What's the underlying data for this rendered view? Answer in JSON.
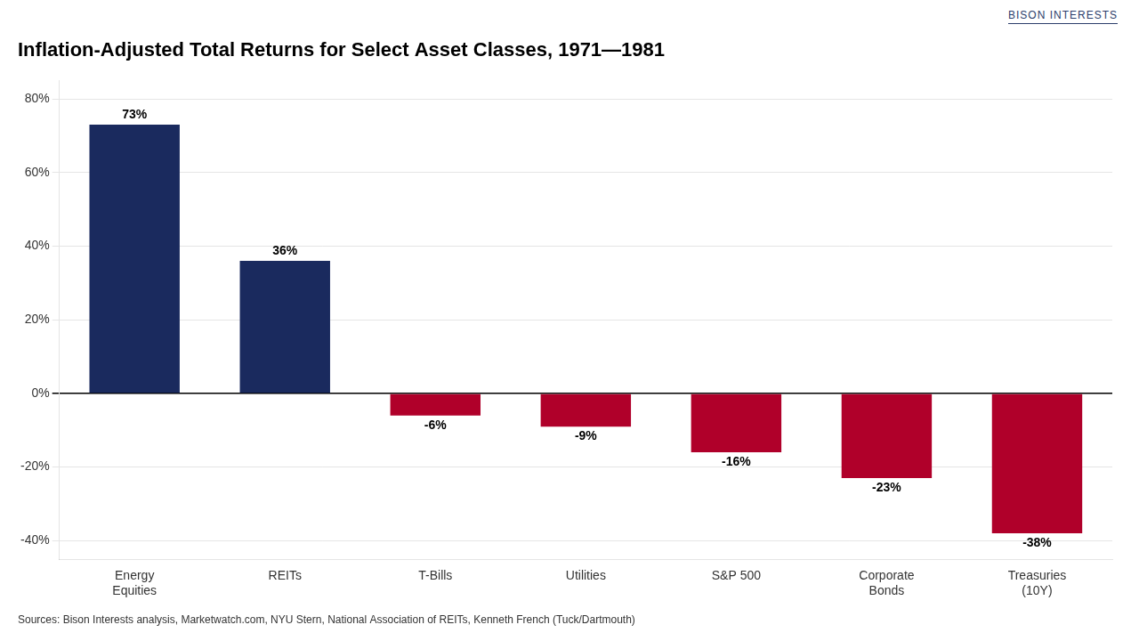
{
  "chart_data": {
    "type": "bar",
    "title": "Inflation-Adjusted Total Returns for Select Asset Classes, 1971—1981",
    "annotations": [
      "Sources: Bison Interests analysis, Marketwatch.com, NYU Stern, National Association of REITs, Kenneth French (Tuck/Dartmouth)",
      "BISON INTERESTS"
    ],
    "categories": [
      "Energy\nEquities",
      "REITs",
      "T-Bills",
      "Utilities",
      "S&P 500",
      "Corporate\nBonds",
      "Treasuries\n(10Y)"
    ],
    "values": [
      73,
      36,
      -6,
      -9,
      -16,
      -23,
      -38
    ],
    "value_labels": [
      "73%",
      "36%",
      "-6%",
      "-9%",
      "-16%",
      "-23%",
      "-38%"
    ],
    "colors": [
      "#1a2a5e",
      "#1a2a5e",
      "#b0002a",
      "#b0002a",
      "#b0002a",
      "#b0002a",
      "#b0002a"
    ],
    "ylim": [
      -45,
      85
    ],
    "yticks": [
      {
        "value": -40,
        "label": "-40%"
      },
      {
        "value": -20,
        "label": "-20%"
      },
      {
        "value": 0,
        "label": "0%"
      },
      {
        "value": 20,
        "label": "20%"
      },
      {
        "value": 40,
        "label": "40%"
      },
      {
        "value": 60,
        "label": "60%"
      },
      {
        "value": 80,
        "label": "80%"
      }
    ],
    "grid": true,
    "data_labels": true
  }
}
